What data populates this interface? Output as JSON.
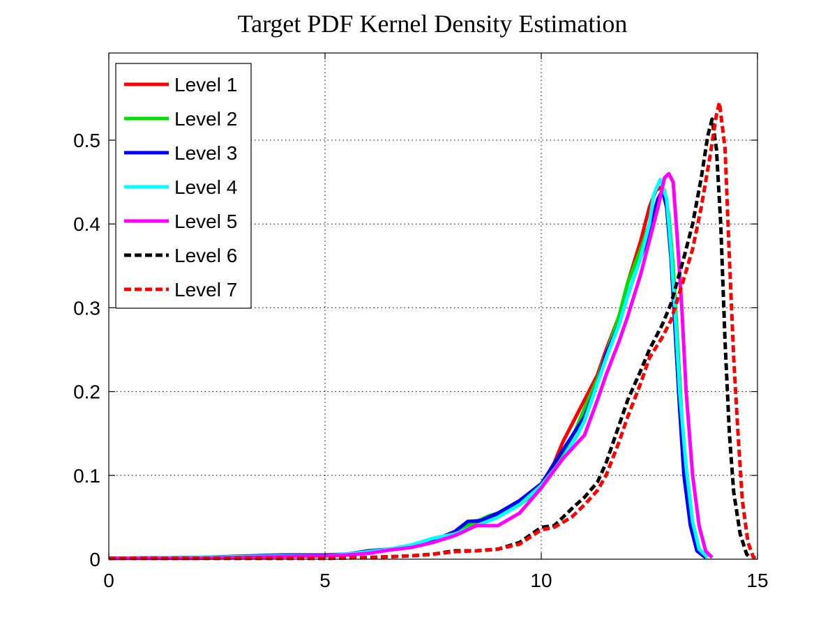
{
  "chart_data": {
    "type": "line",
    "title": "Target PDF Kernel Density Estimation",
    "xlabel": "",
    "ylabel": "",
    "xlim": [
      0,
      15
    ],
    "ylim": [
      0,
      0.5
    ],
    "xticks": [
      0,
      5,
      10,
      15
    ],
    "yticks": [
      0,
      0.1,
      0.2,
      0.3,
      0.4,
      0.5
    ],
    "xtick_labels": [
      "0",
      "5",
      "10",
      "15"
    ],
    "ytick_labels": [
      "0",
      "0.1",
      "0.2",
      "0.3",
      "0.4",
      "0.5"
    ],
    "grid": true,
    "legend_position": "top-left",
    "series": [
      {
        "name": "Level 1",
        "color": "#ff0000",
        "dash": "solid",
        "points": [
          [
            0,
            0.001
          ],
          [
            2,
            0.002
          ],
          [
            4,
            0.003
          ],
          [
            5,
            0.004
          ],
          [
            5.5,
            0.005
          ],
          [
            6,
            0.008
          ],
          [
            6.5,
            0.012
          ],
          [
            7,
            0.016
          ],
          [
            7.5,
            0.022
          ],
          [
            8,
            0.032
          ],
          [
            8.5,
            0.042
          ],
          [
            9,
            0.054
          ],
          [
            9.5,
            0.067
          ],
          [
            10,
            0.088
          ],
          [
            10.3,
            0.115
          ],
          [
            10.5,
            0.14
          ],
          [
            10.8,
            0.17
          ],
          [
            11,
            0.19
          ],
          [
            11.3,
            0.22
          ],
          [
            11.5,
            0.25
          ],
          [
            11.8,
            0.29
          ],
          [
            12,
            0.33
          ],
          [
            12.3,
            0.38
          ],
          [
            12.5,
            0.42
          ],
          [
            12.65,
            0.44
          ],
          [
            12.8,
            0.445
          ],
          [
            12.9,
            0.42
          ],
          [
            13,
            0.36
          ],
          [
            13.1,
            0.27
          ],
          [
            13.2,
            0.18
          ],
          [
            13.3,
            0.1
          ],
          [
            13.45,
            0.04
          ],
          [
            13.6,
            0.01
          ],
          [
            13.8,
            0.002
          ]
        ]
      },
      {
        "name": "Level 2",
        "color": "#00e000",
        "dash": "solid",
        "points": [
          [
            0,
            0.001
          ],
          [
            2,
            0.002
          ],
          [
            4,
            0.004
          ],
          [
            5,
            0.004
          ],
          [
            5.5,
            0.005
          ],
          [
            6,
            0.008
          ],
          [
            6.5,
            0.011
          ],
          [
            7,
            0.016
          ],
          [
            7.5,
            0.022
          ],
          [
            8,
            0.033
          ],
          [
            8.5,
            0.045
          ],
          [
            8.8,
            0.052
          ],
          [
            9,
            0.055
          ],
          [
            9.5,
            0.065
          ],
          [
            10,
            0.085
          ],
          [
            10.5,
            0.125
          ],
          [
            10.8,
            0.155
          ],
          [
            11,
            0.18
          ],
          [
            11.3,
            0.215
          ],
          [
            11.5,
            0.245
          ],
          [
            11.8,
            0.29
          ],
          [
            12,
            0.33
          ],
          [
            12.3,
            0.37
          ],
          [
            12.5,
            0.4
          ],
          [
            12.7,
            0.43
          ],
          [
            12.85,
            0.44
          ],
          [
            12.95,
            0.41
          ],
          [
            13.05,
            0.35
          ],
          [
            13.15,
            0.26
          ],
          [
            13.25,
            0.17
          ],
          [
            13.35,
            0.09
          ],
          [
            13.5,
            0.035
          ],
          [
            13.65,
            0.008
          ],
          [
            13.85,
            0.002
          ]
        ]
      },
      {
        "name": "Level 3",
        "color": "#0000ff",
        "dash": "solid",
        "points": [
          [
            0,
            0.001
          ],
          [
            2,
            0.002
          ],
          [
            4,
            0.005
          ],
          [
            5,
            0.005
          ],
          [
            5.5,
            0.006
          ],
          [
            6,
            0.01
          ],
          [
            6.5,
            0.012
          ],
          [
            7,
            0.015
          ],
          [
            7.5,
            0.022
          ],
          [
            8,
            0.033
          ],
          [
            8.3,
            0.045
          ],
          [
            8.6,
            0.046
          ],
          [
            9,
            0.055
          ],
          [
            9.5,
            0.07
          ],
          [
            10,
            0.09
          ],
          [
            10.5,
            0.13
          ],
          [
            11,
            0.17
          ],
          [
            11.3,
            0.21
          ],
          [
            11.5,
            0.245
          ],
          [
            11.8,
            0.28
          ],
          [
            12,
            0.315
          ],
          [
            12.3,
            0.36
          ],
          [
            12.5,
            0.39
          ],
          [
            12.7,
            0.43
          ],
          [
            12.8,
            0.44
          ],
          [
            12.9,
            0.42
          ],
          [
            13,
            0.36
          ],
          [
            13.1,
            0.27
          ],
          [
            13.2,
            0.18
          ],
          [
            13.3,
            0.1
          ],
          [
            13.45,
            0.04
          ],
          [
            13.6,
            0.01
          ],
          [
            13.8,
            0.002
          ]
        ]
      },
      {
        "name": "Level 4",
        "color": "#00ffff",
        "dash": "solid",
        "points": [
          [
            0,
            0.001
          ],
          [
            2,
            0.002
          ],
          [
            4,
            0.004
          ],
          [
            5,
            0.004
          ],
          [
            5.5,
            0.006
          ],
          [
            6,
            0.009
          ],
          [
            6.5,
            0.012
          ],
          [
            7,
            0.017
          ],
          [
            7.5,
            0.025
          ],
          [
            8,
            0.03
          ],
          [
            8.5,
            0.04
          ],
          [
            9,
            0.05
          ],
          [
            9.5,
            0.065
          ],
          [
            10,
            0.088
          ],
          [
            10.5,
            0.12
          ],
          [
            10.8,
            0.145
          ],
          [
            11,
            0.165
          ],
          [
            11.3,
            0.21
          ],
          [
            11.5,
            0.24
          ],
          [
            11.8,
            0.28
          ],
          [
            12,
            0.315
          ],
          [
            12.3,
            0.36
          ],
          [
            12.5,
            0.4
          ],
          [
            12.6,
            0.435
          ],
          [
            12.75,
            0.453
          ],
          [
            12.9,
            0.43
          ],
          [
            13,
            0.37
          ],
          [
            13.1,
            0.29
          ],
          [
            13.2,
            0.2
          ],
          [
            13.35,
            0.11
          ],
          [
            13.5,
            0.045
          ],
          [
            13.65,
            0.012
          ],
          [
            13.85,
            0.002
          ]
        ]
      },
      {
        "name": "Level 5",
        "color": "#ff00ff",
        "dash": "solid",
        "points": [
          [
            0,
            0.001
          ],
          [
            2,
            0.001
          ],
          [
            4,
            0.003
          ],
          [
            5,
            0.004
          ],
          [
            5.5,
            0.005
          ],
          [
            6,
            0.007
          ],
          [
            6.5,
            0.011
          ],
          [
            7,
            0.014
          ],
          [
            7.5,
            0.02
          ],
          [
            8,
            0.028
          ],
          [
            8.5,
            0.04
          ],
          [
            9,
            0.04
          ],
          [
            9.5,
            0.055
          ],
          [
            10,
            0.085
          ],
          [
            10.5,
            0.12
          ],
          [
            11,
            0.148
          ],
          [
            11.3,
            0.19
          ],
          [
            11.5,
            0.22
          ],
          [
            11.8,
            0.26
          ],
          [
            12,
            0.29
          ],
          [
            12.3,
            0.34
          ],
          [
            12.5,
            0.38
          ],
          [
            12.7,
            0.42
          ],
          [
            12.85,
            0.455
          ],
          [
            12.95,
            0.46
          ],
          [
            13.05,
            0.45
          ],
          [
            13.15,
            0.38
          ],
          [
            13.25,
            0.3
          ],
          [
            13.35,
            0.2
          ],
          [
            13.5,
            0.1
          ],
          [
            13.65,
            0.04
          ],
          [
            13.8,
            0.01
          ],
          [
            13.95,
            0.002
          ]
        ]
      },
      {
        "name": "Level 6",
        "color": "#000000",
        "dash": "dashed",
        "points": [
          [
            0,
            0.001
          ],
          [
            3,
            0.001
          ],
          [
            5,
            0.001
          ],
          [
            6,
            0.002
          ],
          [
            7,
            0.004
          ],
          [
            7.5,
            0.006
          ],
          [
            8,
            0.01
          ],
          [
            8.5,
            0.01
          ],
          [
            9,
            0.012
          ],
          [
            9.5,
            0.02
          ],
          [
            10,
            0.038
          ],
          [
            10.3,
            0.04
          ],
          [
            10.7,
            0.06
          ],
          [
            11,
            0.074
          ],
          [
            11.3,
            0.092
          ],
          [
            11.5,
            0.115
          ],
          [
            11.8,
            0.16
          ],
          [
            12,
            0.19
          ],
          [
            12.3,
            0.225
          ],
          [
            12.5,
            0.25
          ],
          [
            12.8,
            0.28
          ],
          [
            13,
            0.305
          ],
          [
            13.3,
            0.36
          ],
          [
            13.5,
            0.4
          ],
          [
            13.7,
            0.455
          ],
          [
            13.85,
            0.505
          ],
          [
            13.95,
            0.525
          ],
          [
            14.05,
            0.49
          ],
          [
            14.15,
            0.4
          ],
          [
            14.25,
            0.26
          ],
          [
            14.35,
            0.15
          ],
          [
            14.45,
            0.08
          ],
          [
            14.6,
            0.03
          ],
          [
            14.75,
            0.006
          ],
          [
            14.85,
            0.001
          ]
        ]
      },
      {
        "name": "Level 7",
        "color": "#ff0000",
        "dash": "dashed",
        "points": [
          [
            0,
            0.001
          ],
          [
            3,
            0.001
          ],
          [
            5,
            0.001
          ],
          [
            6,
            0.002
          ],
          [
            7,
            0.004
          ],
          [
            7.5,
            0.006
          ],
          [
            8,
            0.009
          ],
          [
            8.5,
            0.01
          ],
          [
            9,
            0.012
          ],
          [
            9.5,
            0.018
          ],
          [
            10,
            0.035
          ],
          [
            10.3,
            0.038
          ],
          [
            10.7,
            0.05
          ],
          [
            11,
            0.065
          ],
          [
            11.3,
            0.082
          ],
          [
            11.5,
            0.1
          ],
          [
            11.8,
            0.14
          ],
          [
            12,
            0.17
          ],
          [
            12.3,
            0.21
          ],
          [
            12.5,
            0.24
          ],
          [
            12.8,
            0.265
          ],
          [
            13,
            0.285
          ],
          [
            13.3,
            0.335
          ],
          [
            13.5,
            0.37
          ],
          [
            13.7,
            0.42
          ],
          [
            13.9,
            0.48
          ],
          [
            14.05,
            0.53
          ],
          [
            14.12,
            0.545
          ],
          [
            14.25,
            0.49
          ],
          [
            14.35,
            0.36
          ],
          [
            14.45,
            0.24
          ],
          [
            14.55,
            0.15
          ],
          [
            14.65,
            0.07
          ],
          [
            14.78,
            0.02
          ],
          [
            14.9,
            0.003
          ],
          [
            14.95,
            0.001
          ]
        ]
      }
    ]
  }
}
